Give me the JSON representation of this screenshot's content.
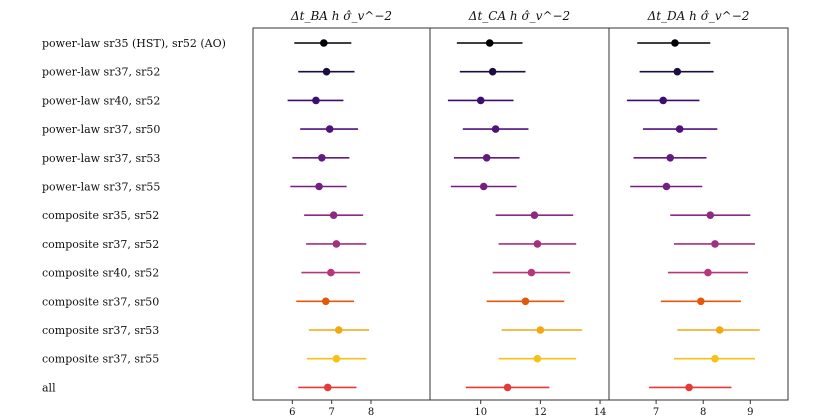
{
  "chart_data": {
    "type": "forest",
    "panel_titles": [
      "Δt_BA h σ̂_v^−2",
      "Δt_CA h σ̂_v^−2",
      "Δt_DA h σ̂_v^−2"
    ],
    "row_labels": [
      "power-law sr35 (HST), sr52 (AO)",
      "power-law sr37, sr52",
      "power-law sr40, sr52",
      "power-law sr37, sr50",
      "power-law sr37, sr53",
      "power-law sr37, sr55",
      "composite sr35, sr52",
      "composite sr37, sr52",
      "composite sr40, sr52",
      "composite sr37, sr50",
      "composite sr37, sr53",
      "composite sr37, sr55",
      "all"
    ],
    "colors": [
      "#000004",
      "#1b0c41",
      "#3b0f70",
      "#51127c",
      "#641a80",
      "#721f81",
      "#8c2981",
      "#a3307e",
      "#b73779",
      "#e3590b",
      "#f3a711",
      "#f6c117",
      "#e63a3a"
    ],
    "panels": [
      {
        "xlim": [
          5.0,
          9.5
        ],
        "ticks": [
          6,
          7,
          8
        ],
        "tick_labels": [
          "6",
          "7",
          "8"
        ],
        "points": [
          {
            "value": 6.8,
            "low": 6.05,
            "high": 7.5
          },
          {
            "value": 6.87,
            "low": 6.15,
            "high": 7.58
          },
          {
            "value": 6.6,
            "low": 5.88,
            "high": 7.3
          },
          {
            "value": 6.95,
            "low": 6.2,
            "high": 7.67
          },
          {
            "value": 6.75,
            "low": 6.0,
            "high": 7.45
          },
          {
            "value": 6.68,
            "low": 5.95,
            "high": 7.38
          },
          {
            "value": 7.05,
            "low": 6.3,
            "high": 7.8
          },
          {
            "value": 7.12,
            "low": 6.35,
            "high": 7.88
          },
          {
            "value": 6.98,
            "low": 6.23,
            "high": 7.72
          },
          {
            "value": 6.85,
            "low": 6.1,
            "high": 7.57
          },
          {
            "value": 7.18,
            "low": 6.42,
            "high": 7.95
          },
          {
            "value": 7.12,
            "low": 6.37,
            "high": 7.88
          },
          {
            "value": 6.9,
            "low": 6.15,
            "high": 7.63
          }
        ]
      },
      {
        "xlim": [
          8.3,
          14.3
        ],
        "ticks": [
          10,
          12,
          14
        ],
        "tick_labels": [
          "10",
          "12",
          "14"
        ],
        "points": [
          {
            "value": 10.3,
            "low": 9.2,
            "high": 11.4
          },
          {
            "value": 10.4,
            "low": 9.3,
            "high": 11.5
          },
          {
            "value": 10.0,
            "low": 8.9,
            "high": 11.1
          },
          {
            "value": 10.5,
            "low": 9.4,
            "high": 11.6
          },
          {
            "value": 10.2,
            "low": 9.1,
            "high": 11.3
          },
          {
            "value": 10.1,
            "low": 9.0,
            "high": 11.2
          },
          {
            "value": 11.8,
            "low": 10.5,
            "high": 13.1
          },
          {
            "value": 11.9,
            "low": 10.6,
            "high": 13.2
          },
          {
            "value": 11.7,
            "low": 10.4,
            "high": 13.0
          },
          {
            "value": 11.5,
            "low": 10.2,
            "high": 12.8
          },
          {
            "value": 12.0,
            "low": 10.7,
            "high": 13.4
          },
          {
            "value": 11.9,
            "low": 10.6,
            "high": 13.2
          },
          {
            "value": 10.9,
            "low": 9.5,
            "high": 12.3
          }
        ]
      },
      {
        "xlim": [
          6.0,
          9.8
        ],
        "ticks": [
          7,
          8,
          9
        ],
        "tick_labels": [
          "7",
          "8",
          "9"
        ],
        "points": [
          {
            "value": 7.4,
            "low": 6.6,
            "high": 8.15
          },
          {
            "value": 7.45,
            "low": 6.65,
            "high": 8.22
          },
          {
            "value": 7.15,
            "low": 6.38,
            "high": 7.92
          },
          {
            "value": 7.5,
            "low": 6.72,
            "high": 8.3
          },
          {
            "value": 7.3,
            "low": 6.52,
            "high": 8.07
          },
          {
            "value": 7.22,
            "low": 6.45,
            "high": 7.98
          },
          {
            "value": 8.15,
            "low": 7.3,
            "high": 9.0
          },
          {
            "value": 8.25,
            "low": 7.38,
            "high": 9.1
          },
          {
            "value": 8.1,
            "low": 7.25,
            "high": 8.95
          },
          {
            "value": 7.95,
            "low": 7.1,
            "high": 8.8
          },
          {
            "value": 8.35,
            "low": 7.45,
            "high": 9.2
          },
          {
            "value": 8.25,
            "low": 7.38,
            "high": 9.1
          },
          {
            "value": 7.7,
            "low": 6.85,
            "high": 8.6
          }
        ]
      }
    ]
  }
}
